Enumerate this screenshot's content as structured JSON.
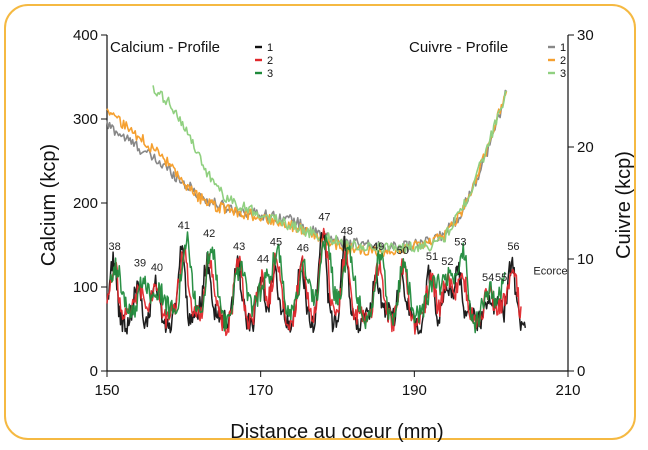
{
  "chart_data": {
    "type": "line",
    "xlabel": "Distance au coeur (mm)",
    "ylabel": "Calcium (kcp)",
    "y2label": "Cuivre (kcp)",
    "xlim": [
      150,
      210
    ],
    "ylim": [
      0,
      400
    ],
    "y2lim": [
      0,
      30
    ],
    "xticks": [
      "150",
      "170",
      "190",
      "210"
    ],
    "yticks": [
      "0",
      "100",
      "200",
      "300",
      "400"
    ],
    "y2ticks": [
      "0",
      "10",
      "20",
      "30"
    ],
    "legend_left": {
      "title": "Calcium - Profile",
      "items": [
        {
          "label": "1",
          "color": "#111111"
        },
        {
          "label": "2",
          "color": "#e0282c"
        },
        {
          "label": "3",
          "color": "#1f8a3b"
        }
      ]
    },
    "legend_right": {
      "title": "Cuivre - Profile",
      "items": [
        {
          "label": "1",
          "color": "#888888"
        },
        {
          "label": "2",
          "color": "#f5a030"
        },
        {
          "label": "3",
          "color": "#90d080"
        }
      ]
    },
    "calcium_base": 70,
    "calcium_peaks": [
      {
        "label": "38",
        "x": 151.0,
        "y": 130
      },
      {
        "label": "39",
        "x": 154.3,
        "y": 110
      },
      {
        "label": "40",
        "x": 156.5,
        "y": 105
      },
      {
        "label": "41",
        "x": 160.0,
        "y": 155
      },
      {
        "label": "42",
        "x": 163.3,
        "y": 145
      },
      {
        "label": "43",
        "x": 167.2,
        "y": 130
      },
      {
        "label": "44",
        "x": 170.3,
        "y": 115
      },
      {
        "label": "45",
        "x": 172.0,
        "y": 135
      },
      {
        "label": "46",
        "x": 175.5,
        "y": 128
      },
      {
        "label": "47",
        "x": 178.3,
        "y": 165
      },
      {
        "label": "48",
        "x": 181.2,
        "y": 148
      },
      {
        "label": "49",
        "x": 185.3,
        "y": 130
      },
      {
        "label": "50",
        "x": 188.5,
        "y": 125
      },
      {
        "label": "51",
        "x": 192.3,
        "y": 118
      },
      {
        "label": "52",
        "x": 194.3,
        "y": 112
      },
      {
        "label": "53",
        "x": 196.0,
        "y": 135
      },
      {
        "label": "54",
        "x": 199.6,
        "y": 93
      },
      {
        "label": "55",
        "x": 201.3,
        "y": 93
      },
      {
        "label": "56",
        "x": 202.9,
        "y": 130
      }
    ],
    "ecorce_label": "Ecorce",
    "cuivre_series": [
      {
        "name": "1",
        "color": "#888888",
        "x": [
          150,
          152,
          155,
          158,
          160,
          163,
          166,
          170,
          174,
          178,
          181,
          184,
          188,
          192,
          194,
          196,
          198,
          200,
          202
        ],
        "y": [
          22.0,
          21.0,
          19.5,
          18.0,
          16.8,
          15.2,
          14.5,
          14.0,
          13.5,
          12.0,
          11.5,
          11.2,
          11.0,
          11.5,
          12.3,
          14.0,
          17.0,
          20.5,
          25.0
        ]
      },
      {
        "name": "2",
        "color": "#f5a030",
        "x": [
          150,
          152,
          155,
          158,
          160,
          163,
          166,
          170,
          174,
          178,
          181,
          184,
          188,
          192,
          194,
          196,
          198,
          200,
          202
        ],
        "y": [
          23.5,
          22.0,
          20.5,
          18.5,
          16.5,
          15.0,
          14.3,
          13.8,
          13.0,
          11.8,
          11.0,
          10.6,
          10.8,
          11.4,
          12.2,
          14.0,
          17.0,
          21.0,
          25.0
        ]
      },
      {
        "name": "3",
        "color": "#90d080",
        "x": [
          156,
          158,
          160,
          162,
          164,
          166,
          170,
          174,
          178,
          181,
          184,
          188,
          192,
          194,
          196,
          198,
          200,
          202
        ],
        "y": [
          25.0,
          24.0,
          22.0,
          19.0,
          16.5,
          15.2,
          14.0,
          13.0,
          12.0,
          11.4,
          11.0,
          11.0,
          11.2,
          12.0,
          14.2,
          17.2,
          21.0,
          25.0
        ]
      }
    ],
    "calcium_series": [
      {
        "name": "1",
        "color": "#111111",
        "x_start": 150.2,
        "x_end": 204.5
      },
      {
        "name": "2",
        "color": "#e0282c",
        "x_start": 150.0,
        "x_end": 204.0
      },
      {
        "name": "3",
        "color": "#1f8a3b",
        "x_start": 150.4,
        "x_end": 202.0
      }
    ]
  }
}
